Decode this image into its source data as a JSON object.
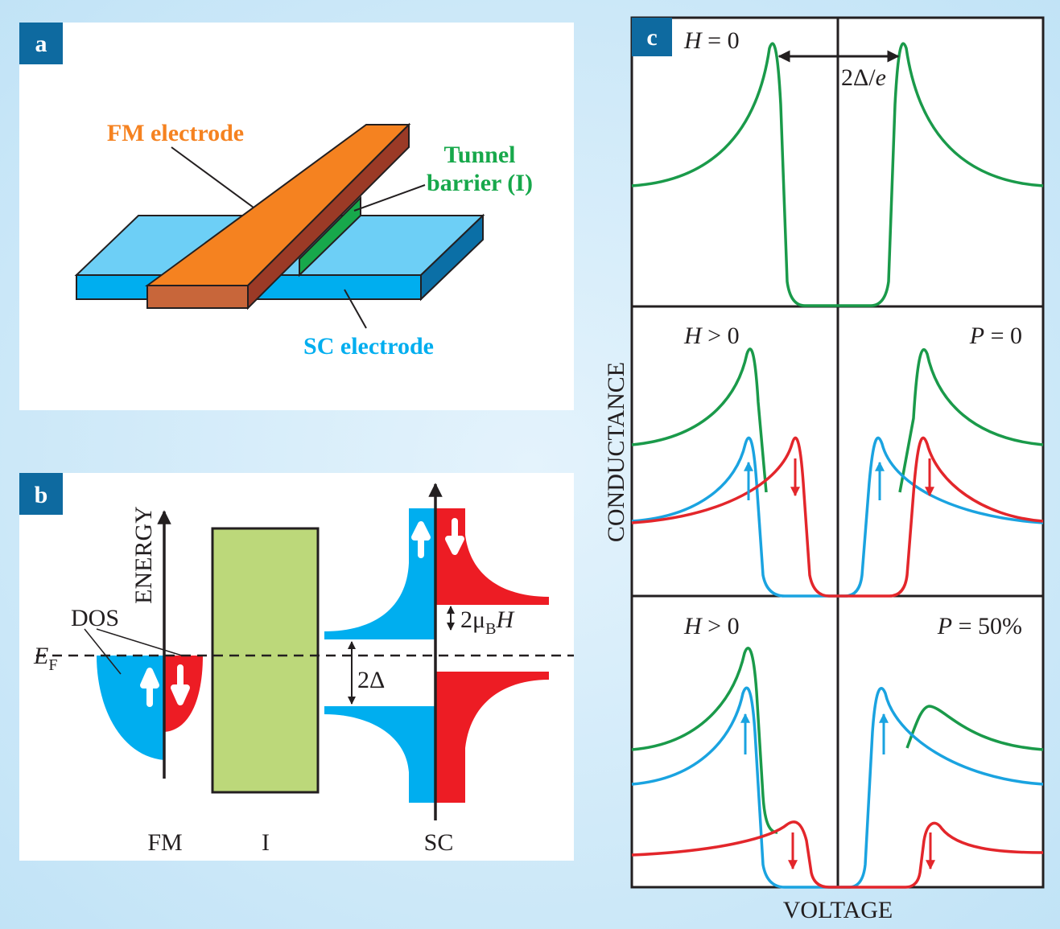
{
  "panel_a": {
    "badge": "a",
    "fm_electrode": "FM electrode",
    "tunnel_barrier": [
      "Tunnel",
      "barrier (I)"
    ],
    "sc_electrode": "SC electrode"
  },
  "panel_b": {
    "badge": "b",
    "energy_axis": "ENERGY",
    "dos": "DOS",
    "fermi": {
      "symbol": "E",
      "sub": "F"
    },
    "gap": "2Δ",
    "zeeman": {
      "pre": "2μ",
      "sub": "B",
      "post": "H"
    },
    "layers": [
      "FM",
      "I",
      "SC"
    ]
  },
  "panel_c": {
    "badge": "c",
    "top": {
      "field": {
        "var": "H",
        "rest": " = 0"
      },
      "gap": {
        "pre": "2Δ/",
        "var": "e"
      }
    },
    "middle": {
      "field": {
        "var": "H",
        "rest": " > 0"
      },
      "polarization": {
        "var": "P",
        "rest": " = 0"
      }
    },
    "bottom": {
      "field": {
        "var": "H",
        "rest": " > 0"
      },
      "polarization": {
        "var": "P",
        "rest": " = 50%"
      }
    },
    "y_axis": "CONDUCTANCE",
    "x_axis": "VOLTAGE"
  }
}
